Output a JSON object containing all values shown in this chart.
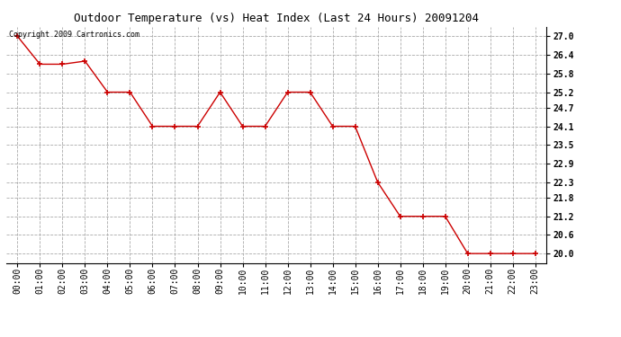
{
  "title": "Outdoor Temperature (vs) Heat Index (Last 24 Hours) 20091204",
  "copyright_text": "Copyright 2009 Cartronics.com",
  "x_labels": [
    "00:00",
    "01:00",
    "02:00",
    "03:00",
    "04:00",
    "05:00",
    "06:00",
    "07:00",
    "08:00",
    "09:00",
    "10:00",
    "11:00",
    "12:00",
    "13:00",
    "14:00",
    "15:00",
    "16:00",
    "17:00",
    "18:00",
    "19:00",
    "20:00",
    "21:00",
    "22:00",
    "23:00"
  ],
  "y_values": [
    27.0,
    26.1,
    26.1,
    26.2,
    25.2,
    25.2,
    24.1,
    24.1,
    24.1,
    25.2,
    24.1,
    24.1,
    25.2,
    25.2,
    24.1,
    24.1,
    22.3,
    21.2,
    21.2,
    21.2,
    20.0,
    20.0,
    20.0,
    20.0
  ],
  "y_min": 19.7,
  "y_max": 27.3,
  "y_ticks": [
    20.0,
    20.6,
    21.2,
    21.8,
    22.3,
    22.9,
    23.5,
    24.1,
    24.7,
    25.2,
    25.8,
    26.4,
    27.0
  ],
  "line_color": "#cc0000",
  "marker_color": "#cc0000",
  "bg_color": "#ffffff",
  "grid_color": "#aaaaaa",
  "title_fontsize": 9,
  "tick_fontsize": 7,
  "copyright_fontsize": 6
}
